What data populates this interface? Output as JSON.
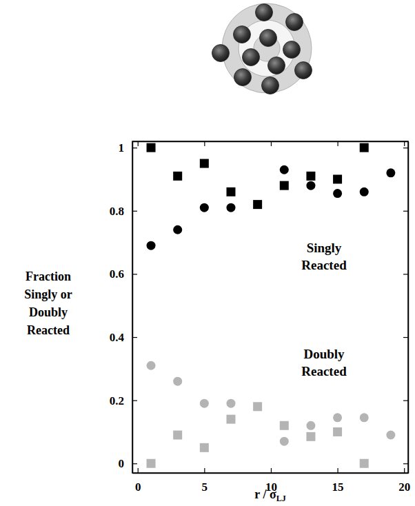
{
  "chart_data": {
    "type": "scatter",
    "x_label": {
      "text": "r / σ",
      "subscript": "LJ"
    },
    "y_label": "Fraction Singly or Doubly Reacted",
    "annotations": [
      "Singly Reacted",
      "Doubly Reacted"
    ],
    "xlim": [
      -0.4,
      20.3
    ],
    "ylim": [
      -0.03,
      1.02
    ],
    "xticks": [
      0,
      5,
      10,
      15,
      20
    ],
    "yticks": [
      0,
      0.2,
      0.4,
      0.6,
      0.8,
      1
    ],
    "grid": false,
    "series": [
      {
        "color": "#000000",
        "marker": "circle",
        "x": [
          1,
          3,
          5,
          7,
          11,
          13,
          15,
          17,
          19
        ],
        "values": [
          0.69,
          0.74,
          0.81,
          0.81,
          0.93,
          0.88,
          0.855,
          0.86,
          0.92
        ]
      },
      {
        "color": "#000000",
        "marker": "square",
        "x": [
          1,
          3,
          5,
          7,
          9,
          11,
          13,
          15,
          17
        ],
        "values": [
          1.0,
          0.91,
          0.95,
          0.86,
          0.82,
          0.88,
          0.91,
          0.9,
          1.0
        ]
      },
      {
        "color": "#b4b4b4",
        "marker": "circle",
        "x": [
          1,
          3,
          5,
          7,
          11,
          13,
          15,
          17,
          19
        ],
        "values": [
          0.31,
          0.26,
          0.19,
          0.19,
          0.07,
          0.12,
          0.145,
          0.145,
          0.09
        ]
      },
      {
        "color": "#b4b4b4",
        "marker": "square",
        "x": [
          1,
          3,
          5,
          7,
          9,
          11,
          13,
          15,
          17
        ],
        "values": [
          0.0,
          0.09,
          0.05,
          0.14,
          0.18,
          0.12,
          0.085,
          0.1,
          0.0
        ]
      }
    ]
  }
}
